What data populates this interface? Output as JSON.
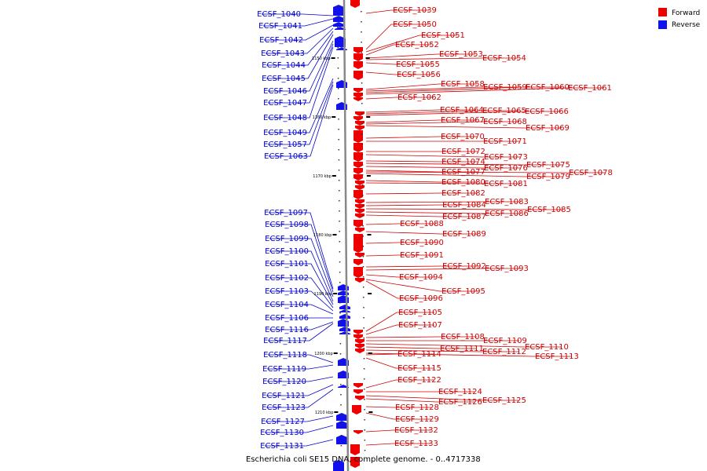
{
  "caption": "Escherichia coli SE15 DNA, complete genome. - 0..4717338",
  "legend": [
    {
      "label": "Forward",
      "color": "#ee0000"
    },
    {
      "label": "Reverse",
      "color": "#1111ee"
    }
  ],
  "colors": {
    "forward": "#ee0000",
    "reverse": "#1111ee",
    "forward_line": "#cc0000",
    "reverse_line": "#0000cc",
    "backbone": "#888888"
  },
  "ticks": [
    "1150 kbp",
    "1160 kbp",
    "1170 kbp",
    "1180 kbp",
    "1190 kbp",
    "1200 kbp",
    "1210 kbp"
  ],
  "forward_genes": [
    "ECSF_1039",
    "ECSF_1050",
    "ECSF_1051",
    "ECSF_1052",
    "ECSF_1053",
    "ECSF_1054",
    "ECSF_1055",
    "ECSF_1056",
    "ECSF_1058",
    "ECSF_1059",
    "ECSF_1060",
    "ECSF_1061",
    "ECSF_1062",
    "ECSF_1064",
    "ECSF_1065",
    "ECSF_1066",
    "ECSF_1067",
    "ECSF_1068",
    "ECSF_1069",
    "ECSF_1070",
    "ECSF_1071",
    "ECSF_1072",
    "ECSF_1073",
    "ECSF_1074",
    "ECSF_1075",
    "ECSF_1076",
    "ECSF_1077",
    "ECSF_1078",
    "ECSF_1079",
    "ECSF_1080",
    "ECSF_1081",
    "ECSF_1082",
    "ECSF_1083",
    "ECSF_1084",
    "ECSF_1085",
    "ECSF_1086",
    "ECSF_1087",
    "ECSF_1088",
    "ECSF_1089",
    "ECSF_1090",
    "ECSF_1091",
    "ECSF_1092",
    "ECSF_1093",
    "ECSF_1094",
    "ECSF_1095",
    "ECSF_1096",
    "ECSF_1105",
    "ECSF_1107",
    "ECSF_1108",
    "ECSF_1109",
    "ECSF_1110",
    "ECSF_1111",
    "ECSF_1112",
    "ECSF_1113",
    "ECSF_1114",
    "ECSF_1115",
    "ECSF_1122",
    "ECSF_1124",
    "ECSF_1125",
    "ECSF_1126",
    "ECSF_1128",
    "ECSF_1129",
    "ECSF_1132",
    "ECSF_1133"
  ],
  "reverse_genes": [
    "ECSF_1040",
    "ECSF_1041",
    "ECSF_1042",
    "ECSF_1043",
    "ECSF_1044",
    "ECSF_1045",
    "ECSF_1046",
    "ECSF_1047",
    "ECSF_1048",
    "ECSF_1049",
    "ECSF_1057",
    "ECSF_1063",
    "ECSF_1097",
    "ECSF_1098",
    "ECSF_1099",
    "ECSF_1100",
    "ECSF_1101",
    "ECSF_1102",
    "ECSF_1103",
    "ECSF_1104",
    "ECSF_1106",
    "ECSF_1116",
    "ECSF_1117",
    "ECSF_1118",
    "ECSF_1119",
    "ECSF_1120",
    "ECSF_1121",
    "ECSF_1123",
    "ECSF_1127",
    "ECSF_1130",
    "ECSF_1131"
  ]
}
